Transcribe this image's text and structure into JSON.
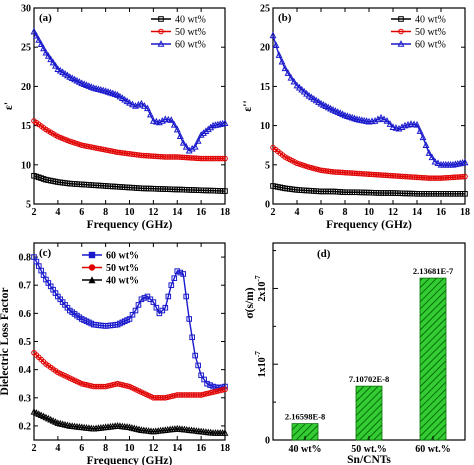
{
  "colors": {
    "s40": "#000000",
    "s50": "#e00000",
    "s60": "#1a1acc",
    "bar_fill": "#33cc33",
    "bar_hatch": "#0a6e0a"
  },
  "chart_data": [
    {
      "panel": "(a)",
      "type": "line",
      "xlabel": "Frequency (GHz)",
      "ylabel": "ε'",
      "xlim": [
        2,
        18
      ],
      "ylim": [
        5,
        30
      ],
      "xticks": [
        2,
        4,
        6,
        8,
        10,
        12,
        14,
        16,
        18
      ],
      "yticks": [
        5,
        10,
        15,
        20,
        25,
        30
      ],
      "legend_position": "top-right",
      "series": [
        {
          "name": "40 wt%",
          "color_key": "s40",
          "marker": "square",
          "x": [
            2,
            3,
            4,
            5,
            6,
            7,
            8,
            9,
            10,
            11,
            12,
            13,
            14,
            15,
            16,
            17,
            18
          ],
          "y": [
            8.6,
            8.1,
            7.8,
            7.6,
            7.5,
            7.4,
            7.3,
            7.2,
            7.1,
            7.0,
            6.95,
            6.9,
            6.85,
            6.8,
            6.75,
            6.7,
            6.65
          ]
        },
        {
          "name": "50 wt%",
          "color_key": "s50",
          "marker": "circle",
          "x": [
            2,
            3,
            4,
            5,
            6,
            7,
            8,
            9,
            10,
            11,
            12,
            13,
            14,
            15,
            16,
            17,
            18
          ],
          "y": [
            15.6,
            14.5,
            13.6,
            13.0,
            12.5,
            12.2,
            11.9,
            11.6,
            11.4,
            11.2,
            11.1,
            11.0,
            11.0,
            10.9,
            10.8,
            10.8,
            10.8
          ]
        },
        {
          "name": "60 wt%",
          "color_key": "s60",
          "marker": "triangle",
          "x": [
            2,
            3,
            4,
            5,
            6,
            7,
            8,
            9,
            10,
            10.5,
            11,
            11.5,
            12,
            12.5,
            13,
            13.5,
            14,
            14.5,
            15,
            15.5,
            16,
            17,
            18
          ],
          "y": [
            27.0,
            24.3,
            22.2,
            21.2,
            20.4,
            19.8,
            19.4,
            18.9,
            17.9,
            17.5,
            17.8,
            17.2,
            15.6,
            15.4,
            15.8,
            15.7,
            14.5,
            12.8,
            11.8,
            12.3,
            13.8,
            15.0,
            15.3
          ]
        }
      ]
    },
    {
      "panel": "(b)",
      "type": "line",
      "xlabel": "Frequency (GHz)",
      "ylabel": "ε''",
      "xlim": [
        2,
        18
      ],
      "ylim": [
        0,
        25
      ],
      "xticks": [
        2,
        4,
        6,
        8,
        10,
        12,
        14,
        16,
        18
      ],
      "yticks": [
        0,
        5,
        10,
        15,
        20,
        25
      ],
      "legend_position": "top-right",
      "series": [
        {
          "name": "40 wt%",
          "color_key": "s40",
          "marker": "square",
          "x": [
            2,
            3,
            4,
            5,
            6,
            7,
            8,
            9,
            10,
            11,
            12,
            13,
            14,
            15,
            16,
            17,
            18
          ],
          "y": [
            2.3,
            2.0,
            1.8,
            1.7,
            1.6,
            1.6,
            1.5,
            1.5,
            1.45,
            1.4,
            1.4,
            1.35,
            1.3,
            1.3,
            1.3,
            1.3,
            1.3
          ]
        },
        {
          "name": "50 wt%",
          "color_key": "s50",
          "marker": "circle",
          "x": [
            2,
            3,
            4,
            5,
            6,
            7,
            8,
            9,
            10,
            11,
            12,
            13,
            14,
            15,
            16,
            17,
            18
          ],
          "y": [
            7.2,
            6.0,
            5.2,
            4.7,
            4.3,
            4.1,
            4.0,
            3.9,
            3.8,
            3.7,
            3.6,
            3.5,
            3.4,
            3.3,
            3.3,
            3.4,
            3.5
          ]
        },
        {
          "name": "60 wt%",
          "color_key": "s60",
          "marker": "triangle",
          "x": [
            2,
            2.5,
            3,
            3.5,
            4,
            5,
            6,
            7,
            8,
            9,
            10,
            10.5,
            11,
            11.5,
            12,
            12.5,
            13,
            13.5,
            14,
            14.5,
            15,
            15.5,
            16,
            17,
            18
          ],
          "y": [
            21.5,
            19.0,
            17.3,
            16.1,
            15.1,
            13.8,
            12.8,
            12.0,
            11.3,
            10.8,
            10.5,
            10.6,
            11.0,
            10.6,
            9.8,
            9.6,
            10.0,
            10.2,
            10.1,
            8.5,
            6.5,
            5.4,
            5.0,
            5.0,
            5.3
          ]
        }
      ]
    },
    {
      "panel": "(c)",
      "type": "line",
      "xlabel": "Frequency (GHz)",
      "ylabel": "Dielectric Loss Factor",
      "xlim": [
        2,
        18
      ],
      "ylim": [
        0.15,
        0.85
      ],
      "xticks": [
        2,
        4,
        6,
        8,
        10,
        12,
        14,
        16,
        18
      ],
      "yticks": [
        0.2,
        0.3,
        0.4,
        0.5,
        0.6,
        0.7,
        0.8
      ],
      "legend_position": "top-left",
      "series": [
        {
          "name": "60 wt%",
          "color_key": "s60",
          "marker": "square",
          "x": [
            2,
            3,
            4,
            5,
            6,
            7,
            8,
            9,
            10,
            10.5,
            11,
            11.5,
            12,
            12.5,
            13,
            13.5,
            14,
            14.5,
            15,
            15.5,
            16,
            16.5,
            17,
            17.5,
            18
          ],
          "y": [
            0.8,
            0.72,
            0.66,
            0.61,
            0.58,
            0.56,
            0.555,
            0.56,
            0.58,
            0.61,
            0.65,
            0.66,
            0.64,
            0.6,
            0.62,
            0.7,
            0.75,
            0.74,
            0.58,
            0.45,
            0.38,
            0.35,
            0.34,
            0.335,
            0.34
          ]
        },
        {
          "name": "50 wt%",
          "color_key": "s50",
          "marker": "circle",
          "x": [
            2,
            3,
            4,
            5,
            6,
            7,
            8,
            9,
            10,
            11,
            12,
            13,
            14,
            15,
            16,
            17,
            18
          ],
          "y": [
            0.46,
            0.42,
            0.39,
            0.37,
            0.35,
            0.34,
            0.34,
            0.35,
            0.34,
            0.32,
            0.3,
            0.3,
            0.31,
            0.31,
            0.31,
            0.32,
            0.33
          ]
        },
        {
          "name": "40 wt%",
          "color_key": "s40",
          "marker": "triangle",
          "x": [
            2,
            3,
            4,
            5,
            6,
            7,
            8,
            9,
            10,
            11,
            12,
            13,
            14,
            15,
            16,
            17,
            18
          ],
          "y": [
            0.25,
            0.23,
            0.21,
            0.2,
            0.195,
            0.19,
            0.195,
            0.2,
            0.195,
            0.185,
            0.18,
            0.185,
            0.19,
            0.185,
            0.18,
            0.175,
            0.175
          ]
        }
      ]
    },
    {
      "panel": "(d)",
      "type": "bar",
      "xlabel": "Sn/CNTs",
      "ylabel": "σ(s/m)",
      "categories": [
        "40 wt%",
        "50 wt.%",
        "60 wt.%"
      ],
      "values": [
        2.16598e-08,
        7.10702e-08,
        2.13681e-07
      ],
      "value_labels": [
        "2.16598E-8",
        "7.10702E-8",
        "2.13681E-7"
      ],
      "ylim": [
        0,
        2.6e-07
      ],
      "yticks": [
        0,
        1e-07,
        2e-07
      ],
      "ytick_labels": [
        {
          "base": "0",
          "exp": ""
        },
        {
          "base": "1x10",
          "exp": "-7"
        },
        {
          "base": "2x10",
          "exp": "-7"
        }
      ]
    }
  ]
}
